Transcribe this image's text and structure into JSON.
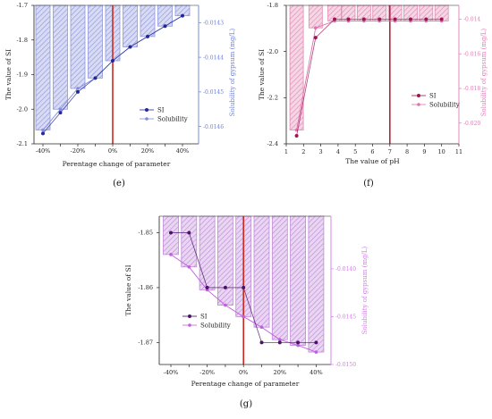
{
  "chart_data": [
    {
      "panel_label": "(e)",
      "type": "bar",
      "categories": [
        "-40%",
        "-30%",
        "-20%",
        "-10%",
        "0%",
        "10%",
        "20%",
        "30%",
        "40%"
      ],
      "x_ticks": [
        "-40%",
        "-20%",
        "0%",
        "20%",
        "40%"
      ],
      "xlabel": "Perentage change of parameter",
      "ylabel": "The value of SI",
      "y2label": "Solubility of gypsum (mg/L)",
      "ylim": [
        -2.1,
        -1.7
      ],
      "y_ticks": [
        -1.7,
        -1.8,
        -1.9,
        -2.0,
        -2.1
      ],
      "y2lim": [
        -0.01425,
        -0.01465
      ],
      "y2_ticks": [
        -0.0143,
        -0.0144,
        -0.0145,
        -0.0146
      ],
      "reference_line_x": "0%",
      "legend": [
        "SI",
        "Solubility"
      ],
      "series": [
        {
          "name": "SI",
          "axis": "left",
          "kind": "line-marker",
          "values": [
            -2.07,
            -2.01,
            -1.95,
            -1.91,
            -1.86,
            -1.82,
            -1.79,
            -1.76,
            -1.73
          ]
        },
        {
          "name": "Solubility",
          "axis": "right",
          "kind": "bar-line",
          "values": [
            -0.01461,
            -0.01455,
            -0.01449,
            -0.01446,
            -0.01441,
            -0.01437,
            -0.01434,
            -0.01431,
            -0.01428
          ]
        }
      ],
      "colors": {
        "bar": "#8e98dc",
        "si": "#23279a",
        "solubility": "#7f8bdc",
        "axis2": "#6c7fd6",
        "ref": "#d0281e"
      }
    },
    {
      "panel_label": "(f)",
      "type": "bar",
      "x": [
        1.6,
        2.7,
        3.8,
        4.6,
        5.5,
        6.4,
        7.3,
        8.2,
        9.1,
        10.0
      ],
      "x_ticks": [
        1,
        2,
        3,
        4,
        5,
        6,
        7,
        8,
        9,
        10,
        11
      ],
      "xlim": [
        1,
        11
      ],
      "xlabel": "The value of pH",
      "ylabel": "The value of SI",
      "y2label": "Solubility of gypsum (mg/L)",
      "ylim": [
        -2.4,
        -1.8
      ],
      "y_ticks": [
        -1.8,
        -2.0,
        -2.2,
        -2.4
      ],
      "y2lim": [
        -0.0132,
        -0.0212
      ],
      "y2_ticks": [
        -0.014,
        -0.016,
        -0.018,
        -0.02
      ],
      "y2_tick_labels": [
        "-0.014",
        "-0.016",
        "-0.018",
        "-0.020"
      ],
      "reference_line_x": 7,
      "legend": [
        "SI",
        "Solubility"
      ],
      "series": [
        {
          "name": "SI",
          "axis": "left",
          "kind": "line-marker",
          "values": [
            -2.365,
            -1.94,
            -1.86,
            -1.86,
            -1.86,
            -1.86,
            -1.86,
            -1.86,
            -1.86,
            -1.86
          ]
        },
        {
          "name": "Solubility",
          "axis": "right",
          "kind": "bar-line",
          "values": [
            -0.0204,
            -0.0145,
            -0.0141,
            -0.0141,
            -0.0141,
            -0.0141,
            -0.0141,
            -0.0141,
            -0.0141,
            -0.0141
          ]
        }
      ],
      "colors": {
        "bar": "#e28ab4",
        "si": "#9a1652",
        "solubility": "#e070b0",
        "axis2": "#e27cb4",
        "ref": "#b5253d"
      }
    },
    {
      "panel_label": "(g)",
      "type": "bar",
      "categories": [
        "-40%",
        "-30%",
        "-20%",
        "-10%",
        "0%",
        "10%",
        "20%",
        "30%",
        "40%"
      ],
      "x_ticks": [
        "-40%",
        "-20%",
        "0%",
        "20%",
        "40%"
      ],
      "xlabel": "Perentage change of parameter",
      "ylabel": "The value of SI",
      "y2label": "Solubility of gypsum (mg/L)",
      "ylim": [
        -1.874,
        -1.847
      ],
      "y_ticks": [
        -1.85,
        -1.86,
        -1.87
      ],
      "y2lim": [
        -0.01345,
        -0.015
      ],
      "y2_ticks": [
        -0.014,
        -0.0145,
        -0.015
      ],
      "y2_tick_labels": [
        "-0.0140",
        "-0.0145",
        "-0.0150"
      ],
      "reference_line_x": "0%",
      "legend": [
        "SI",
        "Solubility"
      ],
      "series": [
        {
          "name": "SI",
          "axis": "left",
          "kind": "line-marker",
          "values": [
            -1.85,
            -1.85,
            -1.86,
            -1.86,
            -1.86,
            -1.87,
            -1.87,
            -1.87,
            -1.87
          ]
        },
        {
          "name": "Solubility",
          "axis": "right",
          "kind": "bar-line",
          "values": [
            -0.01385,
            -0.01398,
            -0.01422,
            -0.01438,
            -0.0145,
            -0.01461,
            -0.01474,
            -0.0148,
            -0.01487
          ]
        }
      ],
      "colors": {
        "bar": "#c08ad8",
        "si": "#4a1268",
        "solubility": "#c25ee0",
        "axis2": "#d27ce8",
        "ref": "#d0281e"
      }
    }
  ]
}
